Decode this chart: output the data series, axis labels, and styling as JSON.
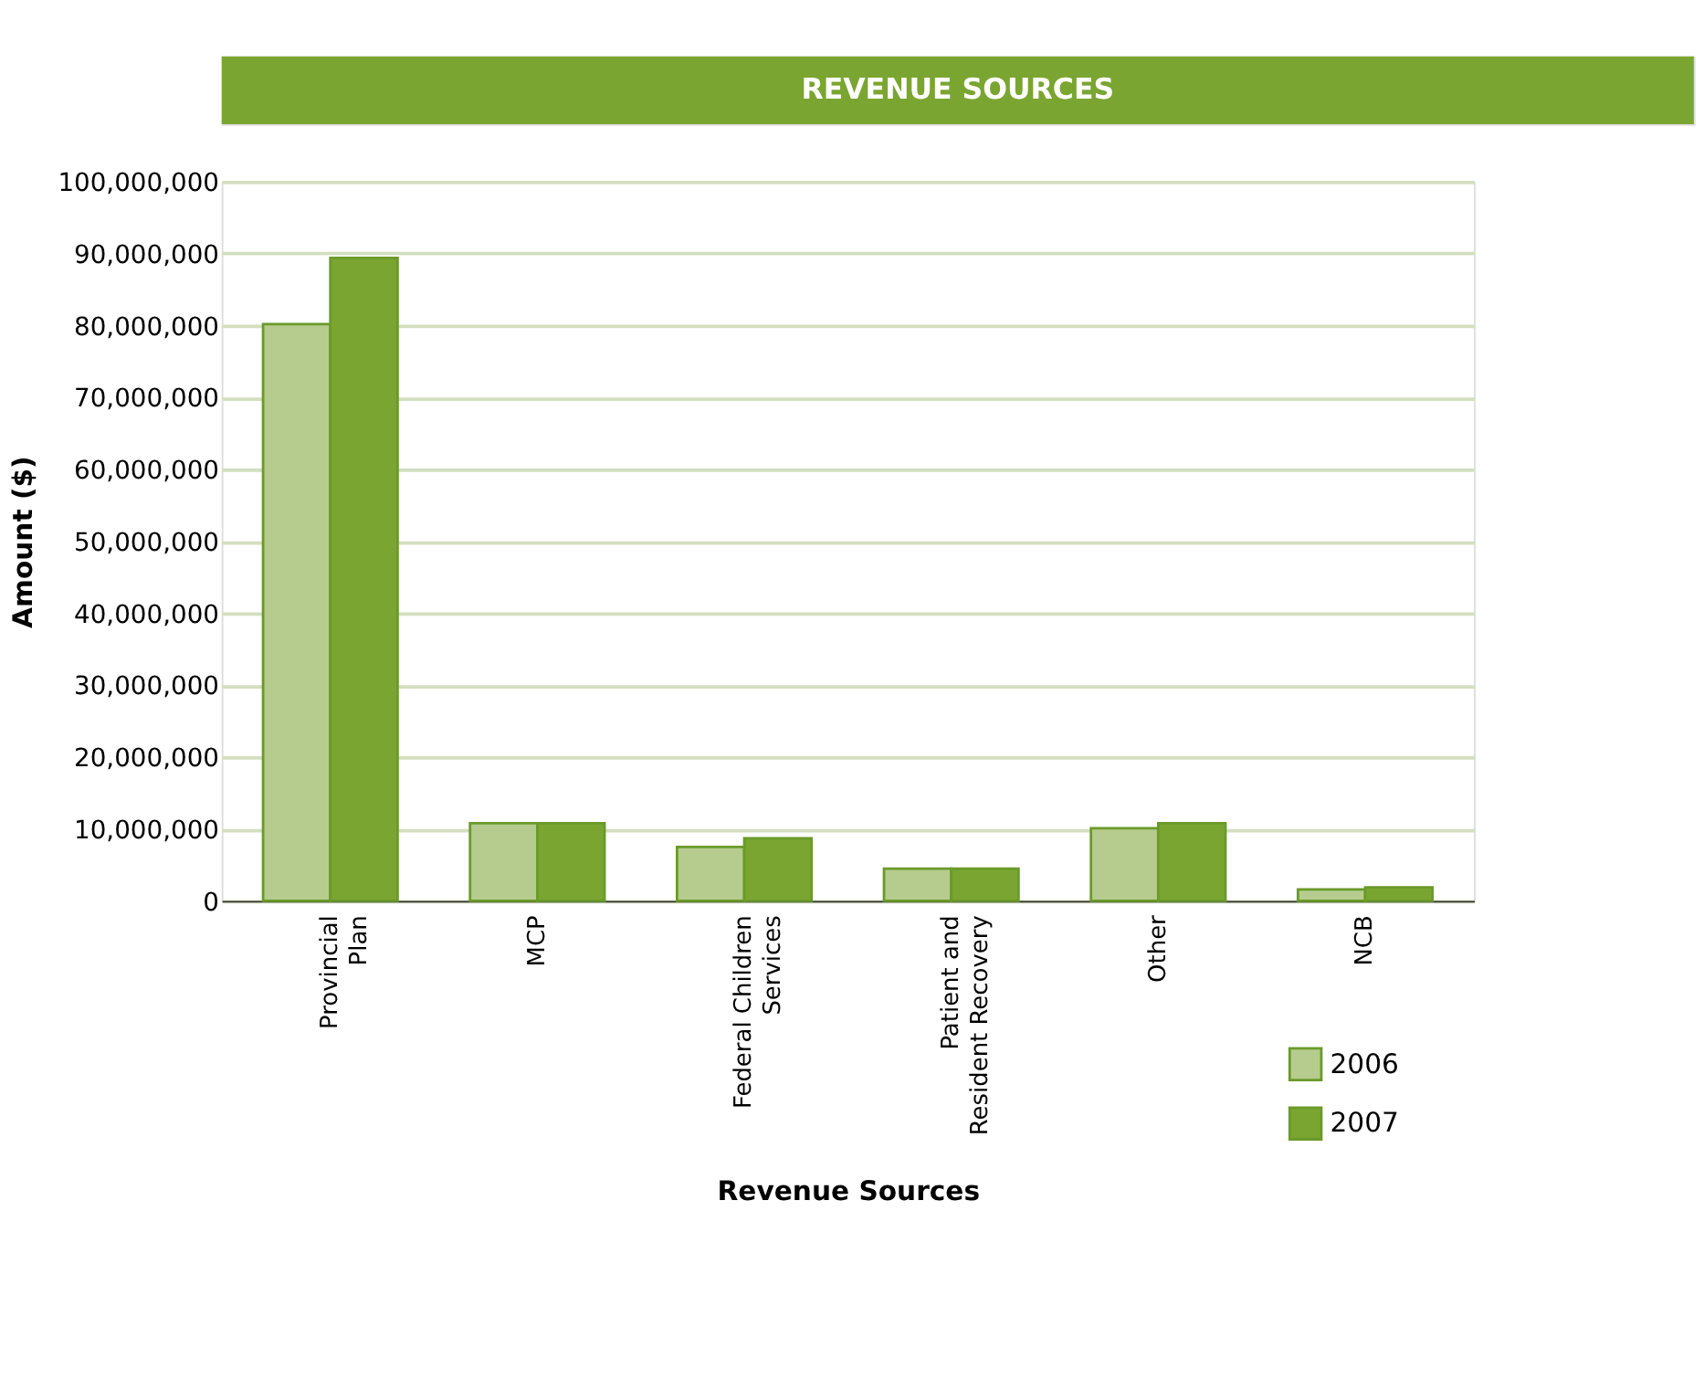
{
  "chart_data": {
    "type": "bar",
    "title": "REVENUE SOURCES",
    "xlabel": "Revenue Sources",
    "ylabel": "Amount ($)",
    "categories": [
      "Provincial Plan",
      "MCP",
      "Federal Children Services",
      "Patient and Resident Recovery",
      "Other",
      "NCB"
    ],
    "series": [
      {
        "name": "2006",
        "color": "#b5cc8e",
        "values": [
          80200000,
          10800000,
          7500000,
          4500000,
          10100000,
          1600000
        ]
      },
      {
        "name": "2007",
        "color": "#7aa530",
        "values": [
          89400000,
          10800000,
          8700000,
          4500000,
          10800000,
          1900000
        ]
      }
    ],
    "ylim": [
      0,
      100000000
    ],
    "yticks": [
      0,
      {
        "value": 10000000,
        "label": "10,000,000"
      },
      {
        "value": 20000000,
        "label": "20,000,000"
      },
      {
        "value": 30000000,
        "label": "30,000,000"
      },
      {
        "value": 40000000,
        "label": "40,000,000"
      },
      {
        "value": 50000000,
        "label": "50,000,000"
      },
      {
        "value": 60000000,
        "label": "60,000,000"
      },
      {
        "value": 70000000,
        "label": "70,000,000"
      },
      {
        "value": 80000000,
        "label": "80,000,000"
      },
      {
        "value": 90000000,
        "label": "90,000,000"
      },
      {
        "value": 100000000,
        "label": "100,000,000"
      }
    ],
    "grid": "y",
    "legend": "bottom right"
  }
}
